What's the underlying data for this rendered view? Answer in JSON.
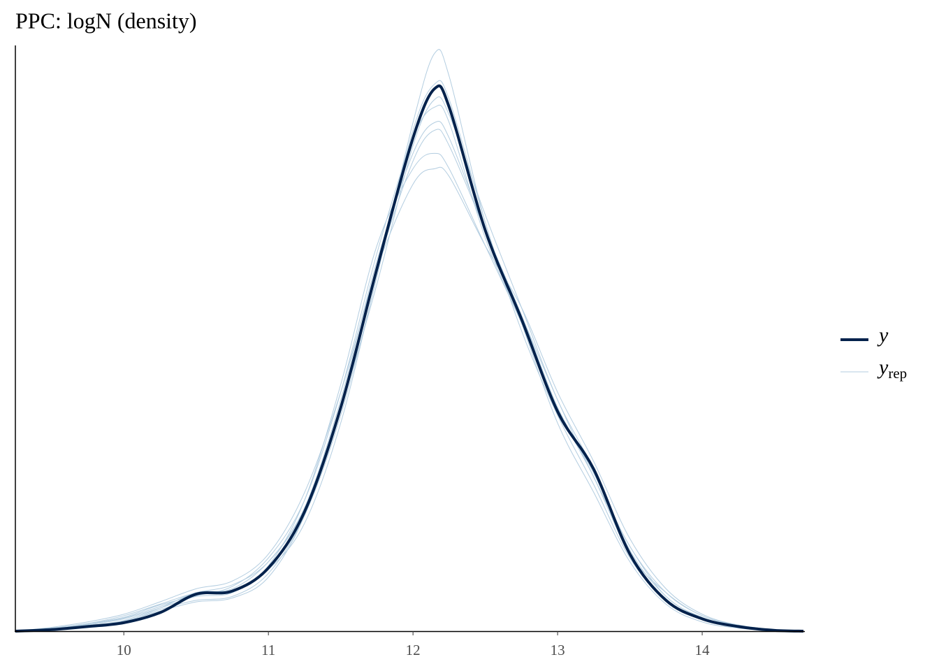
{
  "chart_data": {
    "type": "density",
    "title": "PPC: logN (density)",
    "x": [
      9.25,
      9.5,
      9.75,
      10,
      10.25,
      10.5,
      10.75,
      11,
      11.25,
      11.5,
      11.75,
      12,
      12.15,
      12.25,
      12.5,
      12.75,
      13,
      13.25,
      13.5,
      13.75,
      14,
      14.25,
      14.5,
      14.7
    ],
    "series": [
      {
        "name": "y",
        "color": "#03224c",
        "values": [
          0,
          0.002,
          0.006,
          0.011,
          0.024,
          0.048,
          0.052,
          0.082,
          0.155,
          0.29,
          0.47,
          0.64,
          0.704,
          0.68,
          0.52,
          0.405,
          0.285,
          0.21,
          0.1,
          0.04,
          0.016,
          0.006,
          0.001,
          0
        ]
      }
    ],
    "replicates": {
      "name": "y",
      "subscript": "rep",
      "color": "#b3cde0",
      "series": [
        [
          0,
          0.004,
          0.01,
          0.02,
          0.035,
          0.05,
          0.06,
          0.09,
          0.16,
          0.3,
          0.48,
          0.62,
          0.66,
          0.64,
          0.52,
          0.41,
          0.3,
          0.2,
          0.11,
          0.045,
          0.018,
          0.006,
          0.002,
          0
        ],
        [
          0,
          0.003,
          0.008,
          0.016,
          0.03,
          0.045,
          0.05,
          0.085,
          0.17,
          0.32,
          0.5,
          0.6,
          0.62,
          0.6,
          0.5,
          0.4,
          0.29,
          0.2,
          0.1,
          0.05,
          0.02,
          0.008,
          0.002,
          0
        ],
        [
          0,
          0.002,
          0.006,
          0.012,
          0.028,
          0.04,
          0.045,
          0.075,
          0.15,
          0.28,
          0.46,
          0.66,
          0.75,
          0.72,
          0.53,
          0.4,
          0.27,
          0.18,
          0.09,
          0.035,
          0.012,
          0.004,
          0.001,
          0
        ],
        [
          0,
          0.005,
          0.012,
          0.022,
          0.038,
          0.055,
          0.065,
          0.1,
          0.18,
          0.31,
          0.47,
          0.58,
          0.6,
          0.59,
          0.5,
          0.42,
          0.31,
          0.22,
          0.12,
          0.055,
          0.022,
          0.008,
          0.002,
          0
        ],
        [
          0,
          0.002,
          0.007,
          0.014,
          0.03,
          0.05,
          0.055,
          0.09,
          0.16,
          0.29,
          0.45,
          0.63,
          0.69,
          0.67,
          0.54,
          0.42,
          0.3,
          0.21,
          0.105,
          0.045,
          0.017,
          0.006,
          0.002,
          0
        ],
        [
          0,
          0.003,
          0.009,
          0.017,
          0.032,
          0.048,
          0.052,
          0.08,
          0.14,
          0.27,
          0.46,
          0.65,
          0.71,
          0.69,
          0.53,
          0.39,
          0.28,
          0.19,
          0.095,
          0.04,
          0.015,
          0.005,
          0.001,
          0
        ],
        [
          0,
          0.004,
          0.01,
          0.018,
          0.034,
          0.046,
          0.058,
          0.095,
          0.17,
          0.31,
          0.49,
          0.64,
          0.68,
          0.66,
          0.51,
          0.4,
          0.29,
          0.205,
          0.11,
          0.05,
          0.02,
          0.007,
          0.002,
          0
        ],
        [
          0,
          0.002,
          0.006,
          0.013,
          0.026,
          0.038,
          0.043,
          0.07,
          0.15,
          0.29,
          0.47,
          0.61,
          0.65,
          0.63,
          0.52,
          0.41,
          0.29,
          0.2,
          0.1,
          0.04,
          0.015,
          0.005,
          0.001,
          0
        ]
      ]
    },
    "xlim": [
      9.25,
      14.71
    ],
    "xticks": [
      10,
      11,
      12,
      13,
      14
    ],
    "ylim": [
      0,
      0.76
    ],
    "legend": "right"
  }
}
